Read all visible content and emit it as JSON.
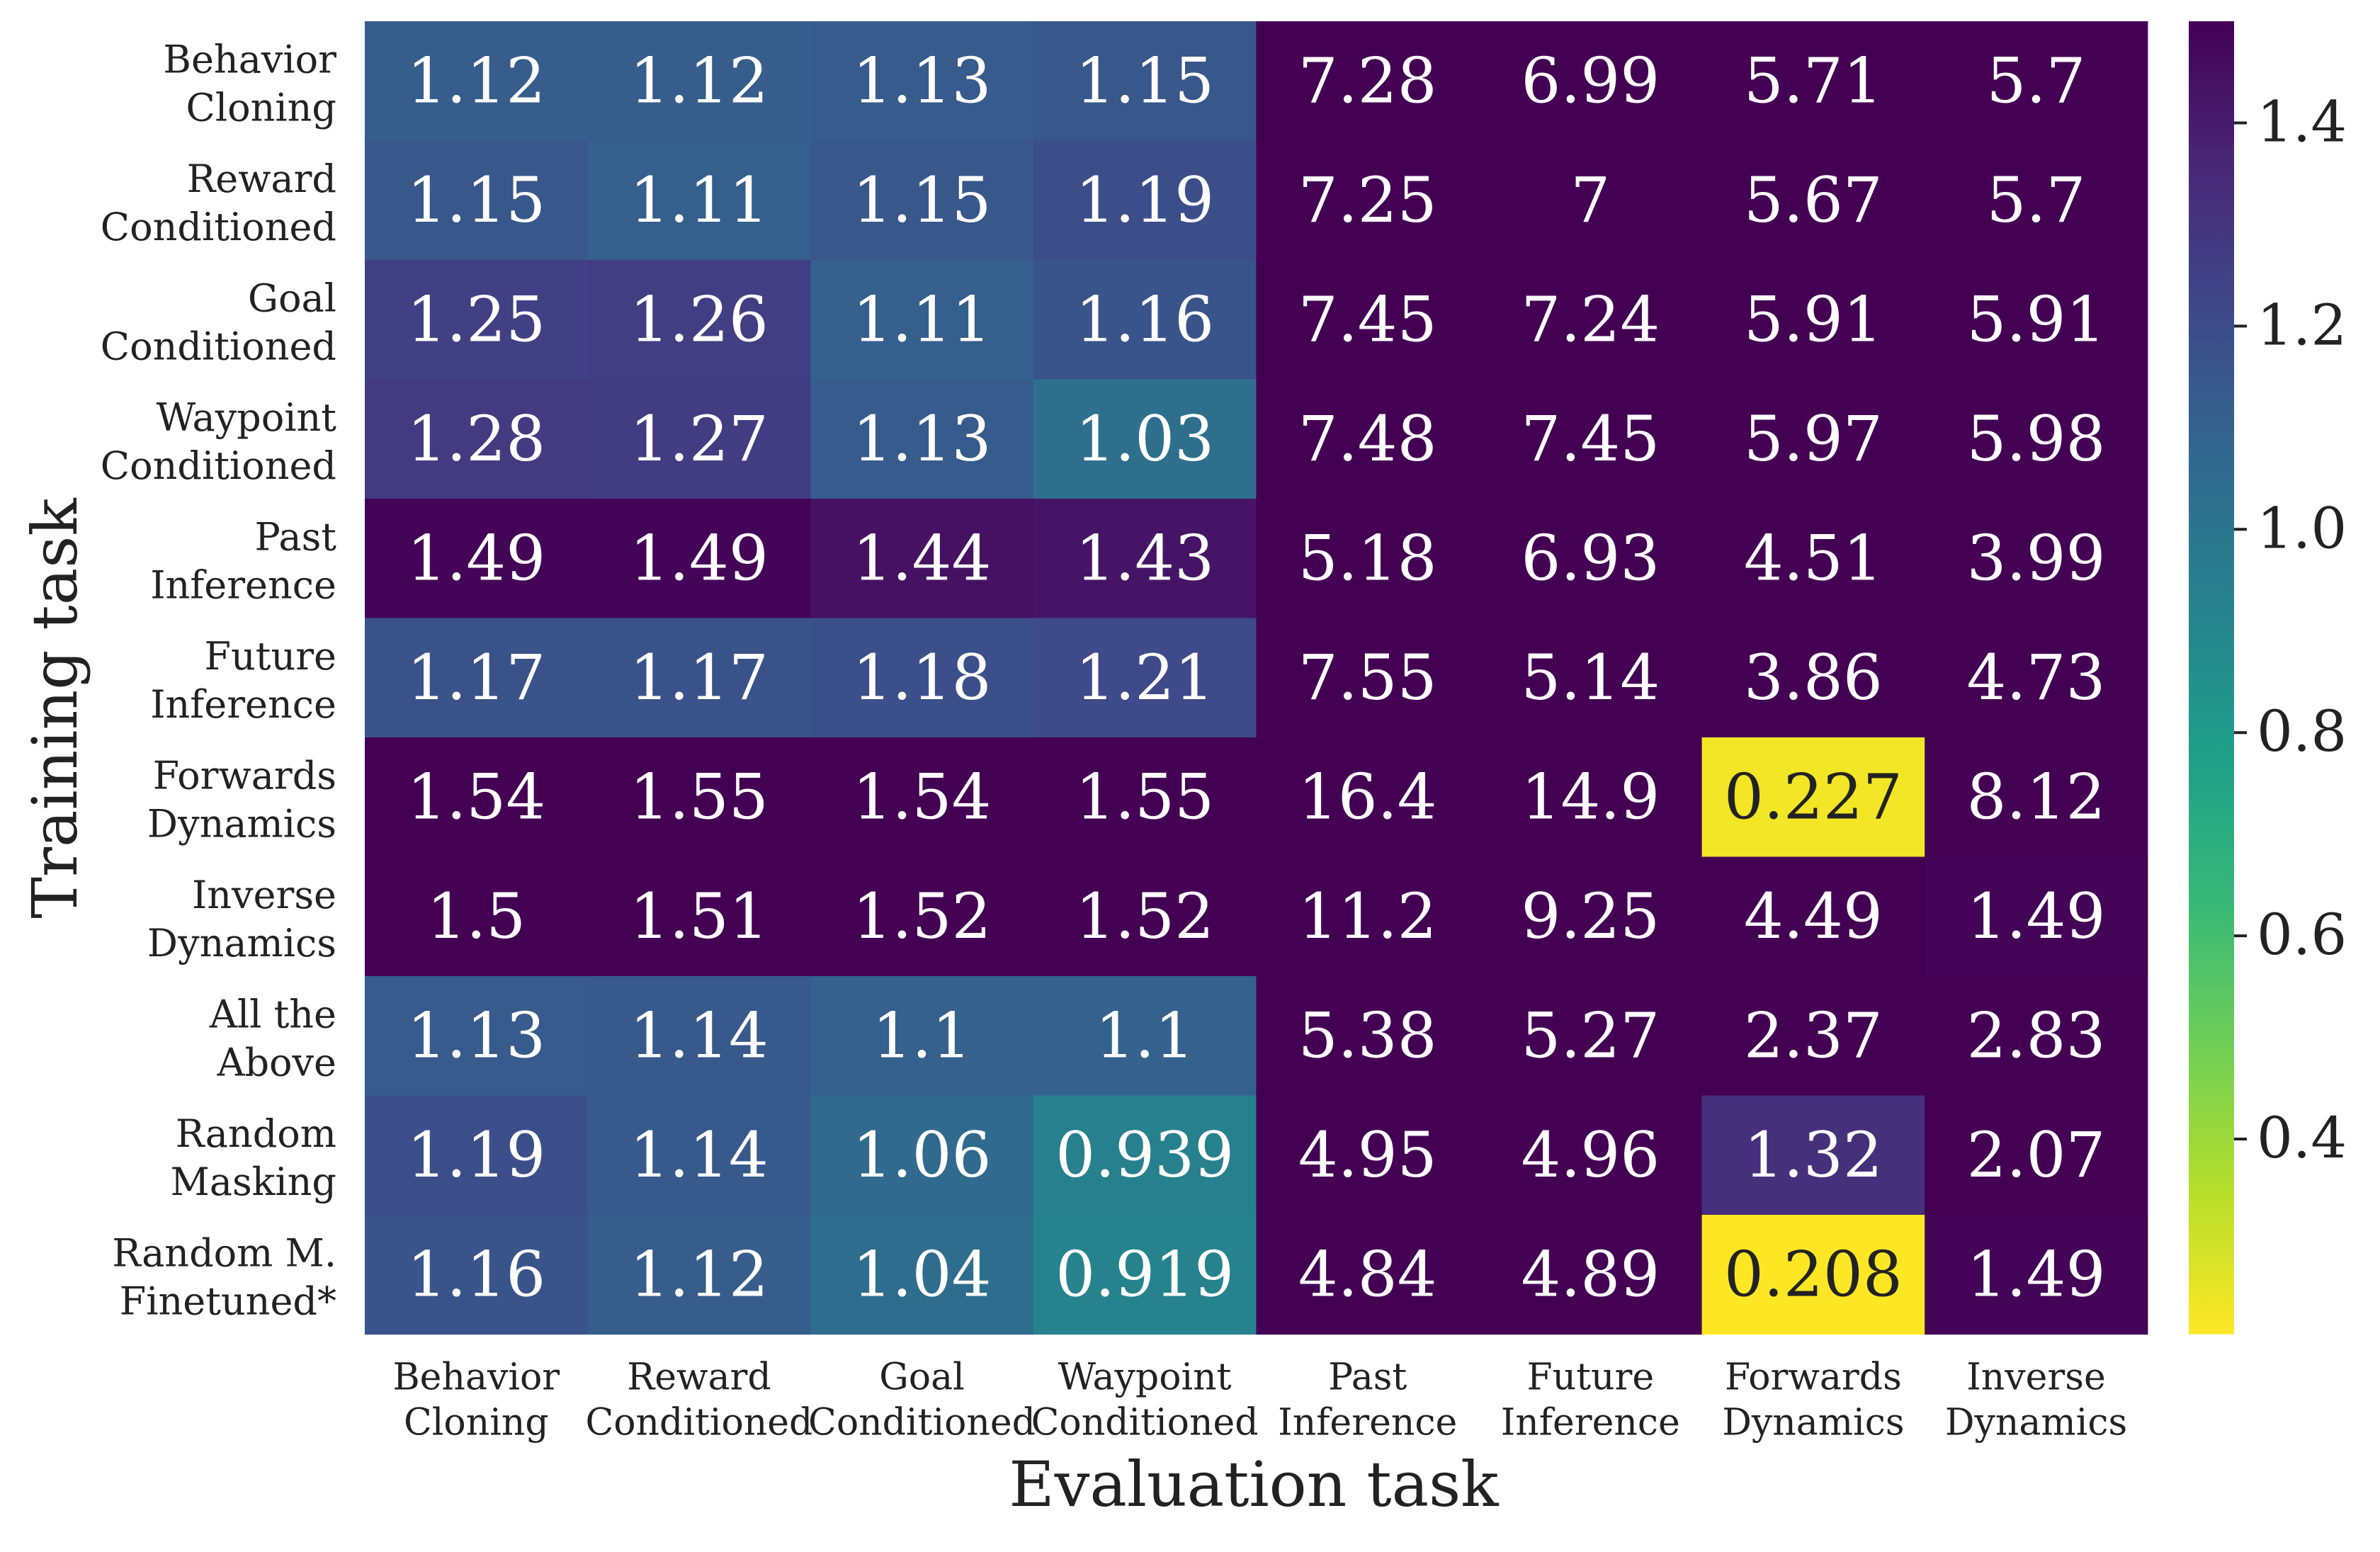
{
  "chart_data": {
    "type": "heatmap",
    "title": "",
    "xlabel": "Evaluation task",
    "ylabel": "Training task",
    "x_categories": [
      [
        "Behavior",
        "Cloning"
      ],
      [
        "Reward",
        "Conditioned"
      ],
      [
        "Goal",
        "Conditioned"
      ],
      [
        "Waypoint",
        "Conditioned"
      ],
      [
        "Past",
        "Inference"
      ],
      [
        "Future",
        "Inference"
      ],
      [
        "Forwards",
        "Dynamics"
      ],
      [
        "Inverse",
        "Dynamics"
      ]
    ],
    "y_categories": [
      [
        "Behavior",
        "Cloning"
      ],
      [
        "Reward",
        "Conditioned"
      ],
      [
        "Goal",
        "Conditioned"
      ],
      [
        "Waypoint",
        "Conditioned"
      ],
      [
        "Past",
        "Inference"
      ],
      [
        "Future",
        "Inference"
      ],
      [
        "Forwards",
        "Dynamics"
      ],
      [
        "Inverse",
        "Dynamics"
      ],
      [
        "All the",
        "Above"
      ],
      [
        "Random",
        "Masking"
      ],
      [
        "Random M.",
        "Finetuned*"
      ]
    ],
    "values": [
      [
        "1.12",
        "1.12",
        "1.13",
        "1.15",
        "7.28",
        "6.99",
        "5.71",
        "5.7"
      ],
      [
        "1.15",
        "1.11",
        "1.15",
        "1.19",
        "7.25",
        "7",
        "5.67",
        "5.7"
      ],
      [
        "1.25",
        "1.26",
        "1.11",
        "1.16",
        "7.45",
        "7.24",
        "5.91",
        "5.91"
      ],
      [
        "1.28",
        "1.27",
        "1.13",
        "1.03",
        "7.48",
        "7.45",
        "5.97",
        "5.98"
      ],
      [
        "1.49",
        "1.49",
        "1.44",
        "1.43",
        "5.18",
        "6.93",
        "4.51",
        "3.99"
      ],
      [
        "1.17",
        "1.17",
        "1.18",
        "1.21",
        "7.55",
        "5.14",
        "3.86",
        "4.73"
      ],
      [
        "1.54",
        "1.55",
        "1.54",
        "1.55",
        "16.4",
        "14.9",
        "0.227",
        "8.12"
      ],
      [
        "1.5",
        "1.51",
        "1.52",
        "1.52",
        "11.2",
        "9.25",
        "4.49",
        "1.49"
      ],
      [
        "1.13",
        "1.14",
        "1.1",
        "1.1",
        "5.38",
        "5.27",
        "2.37",
        "2.83"
      ],
      [
        "1.19",
        "1.14",
        "1.06",
        "0.939",
        "4.95",
        "4.96",
        "1.32",
        "2.07"
      ],
      [
        "1.16",
        "1.12",
        "1.04",
        "0.919",
        "4.84",
        "4.89",
        "0.208",
        "1.49"
      ]
    ],
    "colorbar": {
      "colormap": "viridis_r",
      "vmin": 0.208,
      "vmax": 1.5,
      "ticks": [
        "0.4",
        "0.6",
        "0.8",
        "1.0",
        "1.2",
        "1.4"
      ]
    },
    "colors": {
      "viridis_stops": [
        "#440154",
        "#482878",
        "#3e4989",
        "#31688e",
        "#26828e",
        "#1f9e89",
        "#35b779",
        "#6ece58",
        "#b5de2b",
        "#fde725"
      ],
      "label_dark": "#222222",
      "label_light": "#ffffff"
    }
  }
}
